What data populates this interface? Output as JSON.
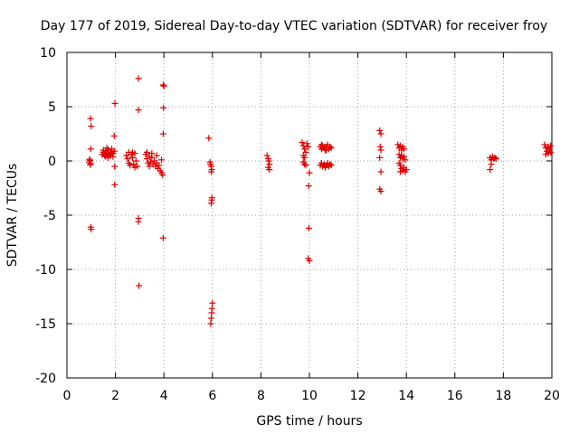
{
  "chart_data": {
    "type": "scatter",
    "title": "Day 177 of 2019, Sidereal Day-to-day VTEC variation (SDTVAR) for receiver froy",
    "xlabel": "GPS time / hours",
    "ylabel": "SDTVAR / TECUs",
    "xlim": [
      0,
      20
    ],
    "ylim": [
      -20,
      10
    ],
    "xticks": [
      0,
      2,
      4,
      6,
      8,
      10,
      12,
      14,
      16,
      18,
      20
    ],
    "yticks": [
      10,
      5,
      0,
      -5,
      -10,
      -15,
      -20
    ],
    "xtick_labels": [
      "0",
      "2",
      "4",
      "6",
      "8",
      "10",
      "12",
      "14",
      "16",
      "18",
      "20"
    ],
    "ytick_labels": [
      "10",
      "5",
      "0",
      "-5",
      "-10",
      "-15",
      "-20"
    ],
    "grid": true,
    "marker": "+",
    "series": [
      {
        "name": "SDTVAR",
        "color": "#e00000",
        "points": [
          [
            0.92,
            -0.1
          ],
          [
            0.95,
            0.05
          ],
          [
            0.97,
            -0.25
          ],
          [
            0.93,
            0.15
          ],
          [
            0.96,
            -0.35
          ],
          [
            0.97,
            3.9
          ],
          [
            1.0,
            3.2
          ],
          [
            0.98,
            1.1
          ],
          [
            0.98,
            -6.1
          ],
          [
            1.0,
            -6.3
          ],
          [
            1.45,
            0.6
          ],
          [
            1.5,
            0.8
          ],
          [
            1.55,
            0.5
          ],
          [
            1.6,
            0.9
          ],
          [
            1.65,
            0.7
          ],
          [
            1.7,
            1.0
          ],
          [
            1.75,
            0.6
          ],
          [
            1.8,
            0.8
          ],
          [
            1.85,
            1.1
          ],
          [
            1.9,
            0.7
          ],
          [
            1.95,
            0.9
          ],
          [
            1.6,
            0.4
          ],
          [
            1.7,
            0.3
          ],
          [
            1.8,
            0.5
          ],
          [
            1.9,
            0.4
          ],
          [
            1.5,
            1.0
          ],
          [
            1.65,
            1.2
          ],
          [
            1.98,
            5.3
          ],
          [
            1.95,
            2.3
          ],
          [
            1.97,
            -0.5
          ],
          [
            1.97,
            -2.2
          ],
          [
            2.45,
            0.5
          ],
          [
            2.5,
            0.2
          ],
          [
            2.55,
            -0.2
          ],
          [
            2.6,
            -0.4
          ],
          [
            2.65,
            0.6
          ],
          [
            2.7,
            0.3
          ],
          [
            2.75,
            -0.3
          ],
          [
            2.8,
            0.7
          ],
          [
            2.85,
            0.0
          ],
          [
            2.9,
            -0.5
          ],
          [
            2.55,
            0.8
          ],
          [
            2.7,
            0.8
          ],
          [
            2.8,
            -0.6
          ],
          [
            2.95,
            7.6
          ],
          [
            2.95,
            4.7
          ],
          [
            2.95,
            -5.3
          ],
          [
            2.95,
            -5.6
          ],
          [
            2.97,
            -11.5
          ],
          [
            3.25,
            0.6
          ],
          [
            3.3,
            0.2
          ],
          [
            3.35,
            -0.2
          ],
          [
            3.4,
            0.4
          ],
          [
            3.45,
            -0.1
          ],
          [
            3.5,
            0.3
          ],
          [
            3.55,
            -0.3
          ],
          [
            3.6,
            0.0
          ],
          [
            3.65,
            -0.5
          ],
          [
            3.7,
            -0.2
          ],
          [
            3.75,
            -0.7
          ],
          [
            3.8,
            -0.4
          ],
          [
            3.85,
            -0.9
          ],
          [
            3.9,
            -1.1
          ],
          [
            3.95,
            -1.3
          ],
          [
            3.3,
            0.8
          ],
          [
            3.5,
            0.7
          ],
          [
            3.7,
            0.5
          ],
          [
            3.9,
            0.1
          ],
          [
            3.4,
            -0.5
          ],
          [
            3.97,
            7.0
          ],
          [
            4.0,
            6.9
          ],
          [
            3.98,
            4.9
          ],
          [
            3.97,
            2.5
          ],
          [
            3.97,
            -7.1
          ],
          [
            5.85,
            2.1
          ],
          [
            5.9,
            -0.1
          ],
          [
            5.92,
            -0.3
          ],
          [
            5.95,
            -0.5
          ],
          [
            5.97,
            -0.8
          ],
          [
            5.95,
            -1.0
          ],
          [
            5.98,
            -3.4
          ],
          [
            5.97,
            -3.6
          ],
          [
            5.95,
            -3.9
          ],
          [
            6.0,
            -13.1
          ],
          [
            5.98,
            -13.6
          ],
          [
            5.97,
            -14.0
          ],
          [
            5.95,
            -14.5
          ],
          [
            5.93,
            -15.0
          ],
          [
            8.25,
            0.5
          ],
          [
            8.3,
            0.2
          ],
          [
            8.32,
            0.0
          ],
          [
            8.35,
            -0.3
          ],
          [
            8.3,
            -0.6
          ],
          [
            8.35,
            -0.8
          ],
          [
            9.7,
            1.7
          ],
          [
            9.75,
            1.4
          ],
          [
            9.8,
            1.1
          ],
          [
            9.85,
            0.8
          ],
          [
            9.9,
            1.6
          ],
          [
            9.95,
            1.3
          ],
          [
            9.75,
            0.5
          ],
          [
            9.8,
            0.3
          ],
          [
            9.75,
            -0.1
          ],
          [
            9.8,
            -0.3
          ],
          [
            9.85,
            -0.4
          ],
          [
            10.0,
            -1.1
          ],
          [
            9.97,
            -2.3
          ],
          [
            9.98,
            -6.2
          ],
          [
            9.95,
            -9.0
          ],
          [
            10.0,
            -9.2
          ],
          [
            10.45,
            1.3
          ],
          [
            10.5,
            1.1
          ],
          [
            10.55,
            1.4
          ],
          [
            10.6,
            1.2
          ],
          [
            10.65,
            1.0
          ],
          [
            10.7,
            1.3
          ],
          [
            10.75,
            1.5
          ],
          [
            10.8,
            1.1
          ],
          [
            10.85,
            1.3
          ],
          [
            10.9,
            1.2
          ],
          [
            10.5,
            1.5
          ],
          [
            10.7,
            1.0
          ],
          [
            10.45,
            -0.4
          ],
          [
            10.5,
            -0.2
          ],
          [
            10.55,
            -0.5
          ],
          [
            10.6,
            -0.3
          ],
          [
            10.65,
            -0.6
          ],
          [
            10.7,
            -0.4
          ],
          [
            10.75,
            -0.2
          ],
          [
            10.8,
            -0.5
          ],
          [
            10.85,
            -0.3
          ],
          [
            10.9,
            -0.4
          ],
          [
            12.9,
            2.8
          ],
          [
            12.95,
            2.5
          ],
          [
            12.92,
            1.3
          ],
          [
            12.95,
            1.0
          ],
          [
            12.9,
            0.3
          ],
          [
            12.95,
            -1.0
          ],
          [
            12.9,
            -2.6
          ],
          [
            12.95,
            -2.8
          ],
          [
            13.65,
            1.5
          ],
          [
            13.7,
            1.2
          ],
          [
            13.75,
            1.4
          ],
          [
            13.8,
            1.0
          ],
          [
            13.85,
            1.3
          ],
          [
            13.9,
            1.1
          ],
          [
            13.7,
            0.6
          ],
          [
            13.75,
            0.3
          ],
          [
            13.8,
            0.5
          ],
          [
            13.85,
            0.2
          ],
          [
            13.9,
            0.4
          ],
          [
            13.95,
            0.1
          ],
          [
            13.7,
            -0.2
          ],
          [
            13.75,
            -0.4
          ],
          [
            13.8,
            -0.7
          ],
          [
            13.85,
            -0.9
          ],
          [
            13.9,
            -0.6
          ],
          [
            13.95,
            -1.0
          ],
          [
            14.0,
            -0.8
          ],
          [
            13.75,
            -1.0
          ],
          [
            17.45,
            0.3
          ],
          [
            17.5,
            0.1
          ],
          [
            17.55,
            0.4
          ],
          [
            17.6,
            0.2
          ],
          [
            17.65,
            0.3
          ],
          [
            17.7,
            0.2
          ],
          [
            17.5,
            -0.3
          ],
          [
            17.45,
            -0.8
          ],
          [
            19.7,
            1.5
          ],
          [
            19.75,
            1.2
          ],
          [
            19.8,
            0.9
          ],
          [
            19.85,
            1.3
          ],
          [
            19.9,
            1.1
          ],
          [
            19.95,
            0.8
          ],
          [
            19.75,
            0.6
          ],
          [
            19.85,
            0.7
          ],
          [
            19.95,
            1.4
          ]
        ]
      }
    ]
  }
}
